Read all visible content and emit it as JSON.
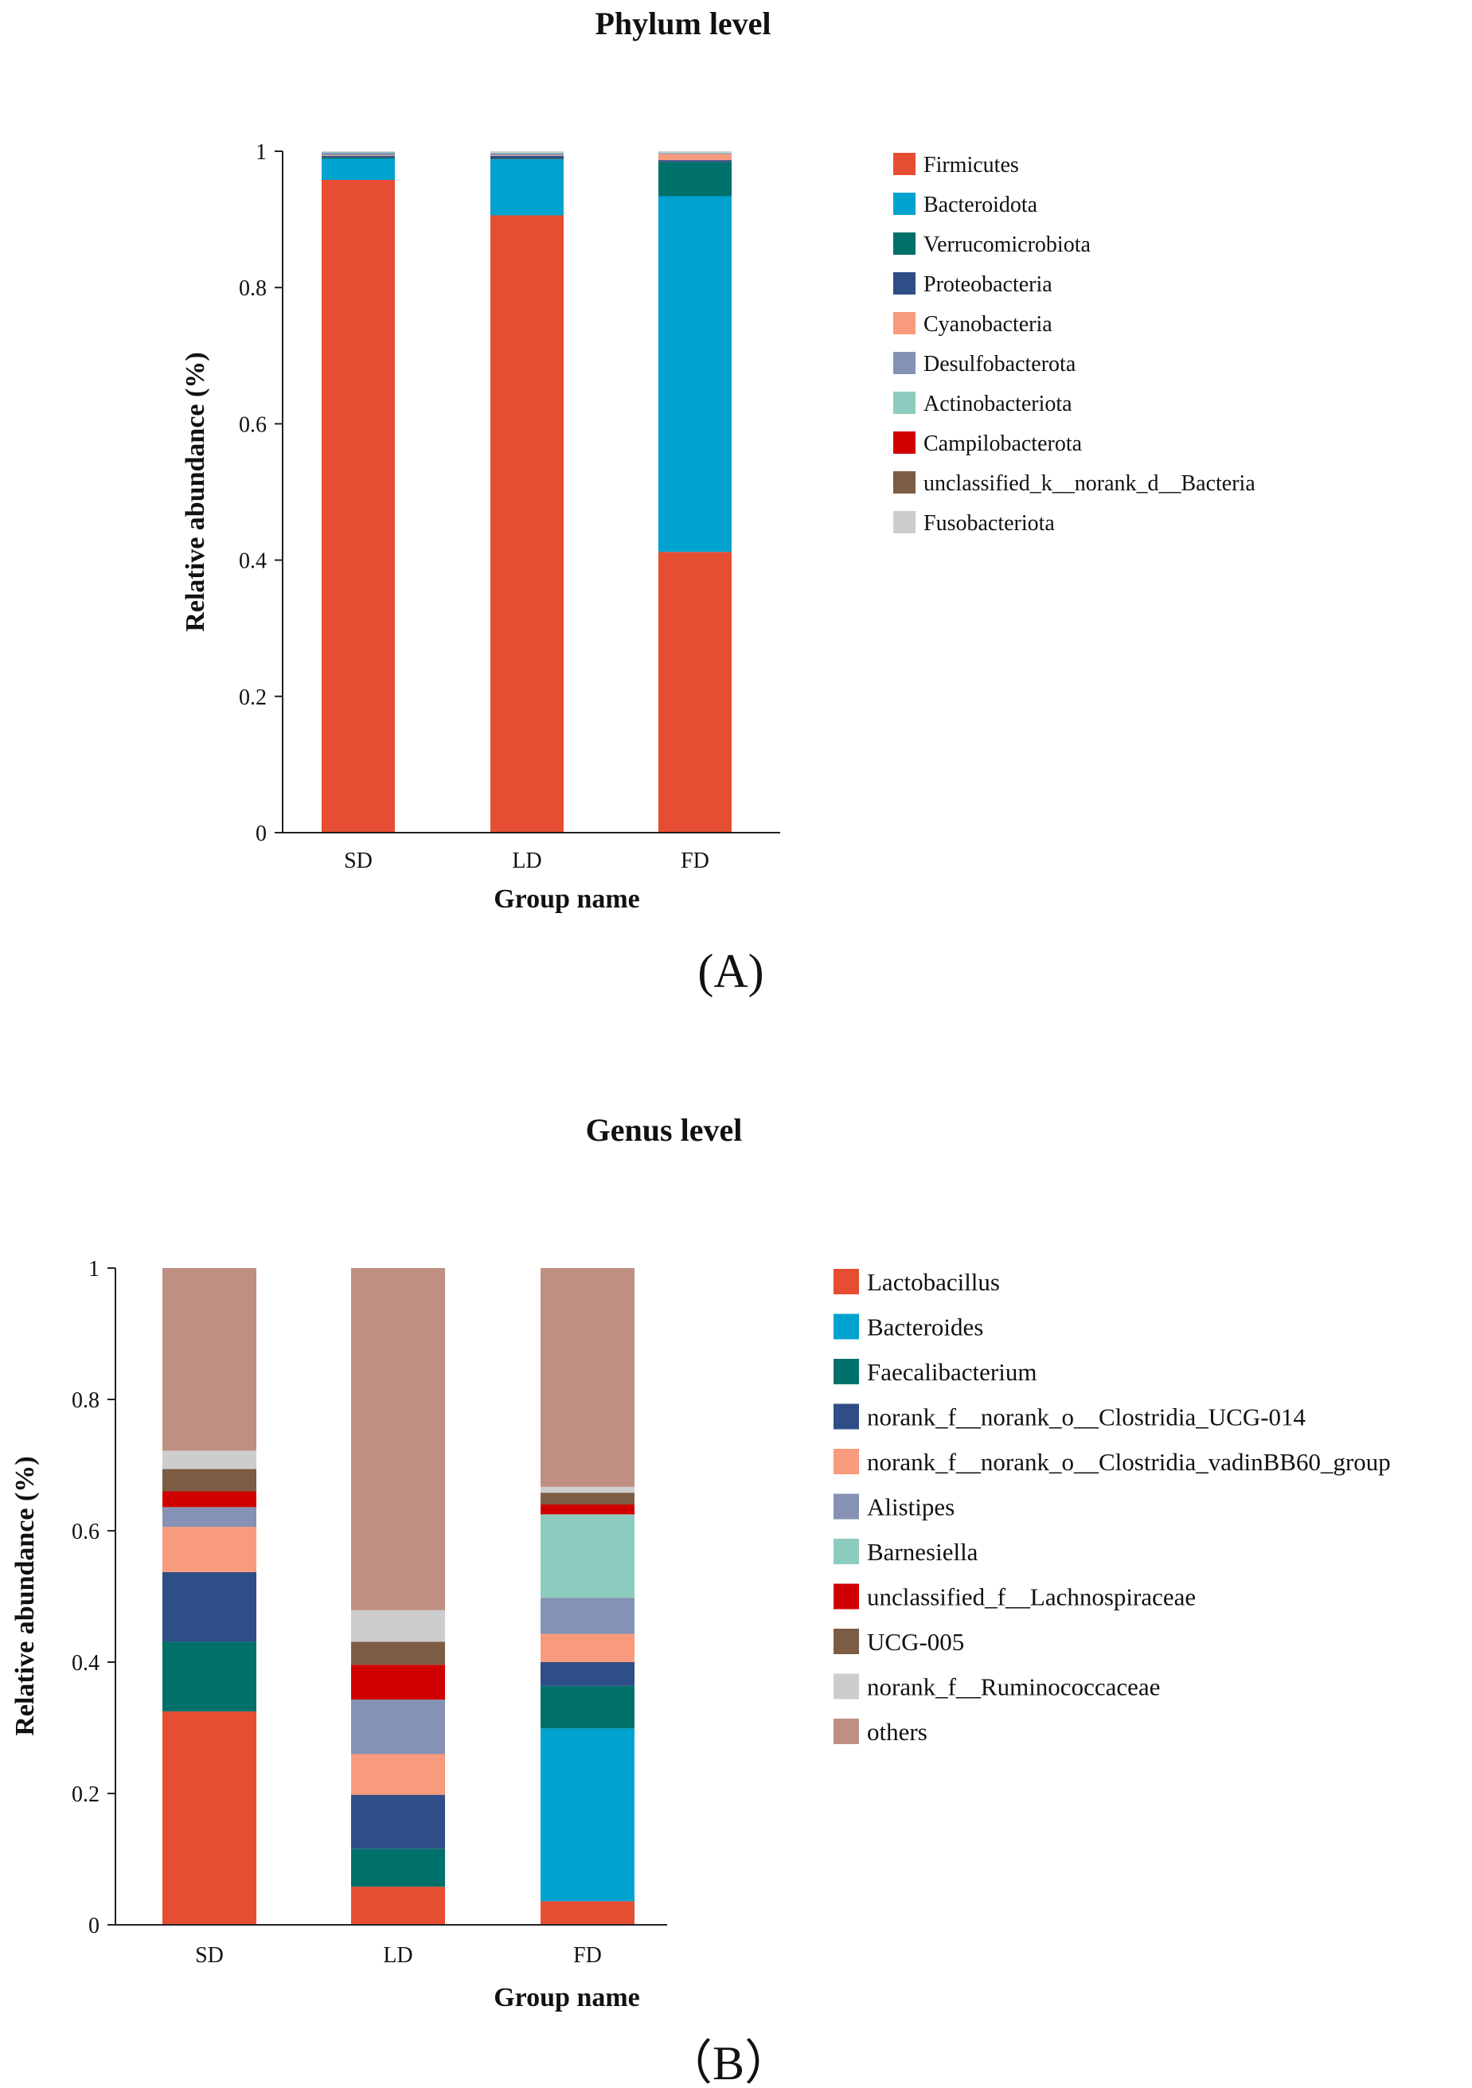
{
  "chart_data": [
    {
      "type": "bar",
      "stacked": true,
      "title": "Phylum level",
      "xlabel": "Group name",
      "ylabel": "Relative abundance (%)",
      "ylim": [
        0,
        1
      ],
      "yticks": [
        "0",
        "0.2",
        "0.4",
        "0.6",
        "0.8",
        "1"
      ],
      "categories": [
        "SD",
        "LD",
        "FD"
      ],
      "legend_position": "right",
      "panel_label": "(A)",
      "series": [
        {
          "name": "Firmicutes",
          "color": "#E64E33",
          "values": [
            0.958,
            0.906,
            0.412
          ]
        },
        {
          "name": "Bacteroidota",
          "color": "#00A3D0",
          "values": [
            0.031,
            0.082,
            0.522
          ]
        },
        {
          "name": "Verrucomicrobiota",
          "color": "#00706A",
          "values": [
            0.002,
            0.001,
            0.05
          ]
        },
        {
          "name": "Proteobacteria",
          "color": "#2F4D86",
          "values": [
            0.002,
            0.004,
            0.003
          ]
        },
        {
          "name": "Cyanobacteria",
          "color": "#F89B7D",
          "values": [
            0.001,
            0.001,
            0.009
          ]
        },
        {
          "name": "Desulfobacterota",
          "color": "#8592B5",
          "values": [
            0.004,
            0.003,
            0.001
          ]
        },
        {
          "name": "Actinobacteriota",
          "color": "#8CCCBE",
          "values": [
            0.001,
            0.001,
            0.001
          ]
        },
        {
          "name": "Campilobacterota",
          "color": "#D10000",
          "values": [
            0.0,
            0.0,
            0.0
          ]
        },
        {
          "name": "unclassified_k__norank_d__Bacteria",
          "color": "#7D5C45",
          "values": [
            0.0,
            0.0,
            0.0
          ]
        },
        {
          "name": "Fusobacteriota",
          "color": "#CDCDCD",
          "values": [
            0.001,
            0.002,
            0.002
          ]
        }
      ]
    },
    {
      "type": "bar",
      "stacked": true,
      "title": "Genus level",
      "xlabel": "Group name",
      "ylabel": "Relative abundance (%)",
      "ylim": [
        0,
        1
      ],
      "yticks": [
        "0",
        "0.2",
        "0.4",
        "0.6",
        "0.8",
        "1"
      ],
      "categories": [
        "SD",
        "LD",
        "FD"
      ],
      "legend_position": "right",
      "panel_label": "（B）",
      "series": [
        {
          "name": "Lactobacillus",
          "color": "#E64E33",
          "values": [
            0.325,
            0.058,
            0.036
          ]
        },
        {
          "name": "Bacteroides",
          "color": "#00A3D0",
          "values": [
            0.0,
            0.0,
            0.263
          ]
        },
        {
          "name": "Faecalibacterium",
          "color": "#00706A",
          "values": [
            0.106,
            0.058,
            0.065
          ]
        },
        {
          "name": "norank_f__norank_o__Clostridia_UCG-014",
          "color": "#2F4D86",
          "values": [
            0.106,
            0.082,
            0.036
          ]
        },
        {
          "name": "norank_f__norank_o__Clostridia_vadinBB60_group",
          "color": "#F89B7D",
          "values": [
            0.069,
            0.062,
            0.043
          ]
        },
        {
          "name": "Alistipes",
          "color": "#8592B5",
          "values": [
            0.03,
            0.083,
            0.055
          ]
        },
        {
          "name": "Barnesiella",
          "color": "#8CCCBE",
          "values": [
            0.0,
            0.0,
            0.127
          ]
        },
        {
          "name": "unclassified_f__Lachnospiraceae",
          "color": "#D10000",
          "values": [
            0.024,
            0.053,
            0.015
          ]
        },
        {
          "name": "UCG-005",
          "color": "#7D5C45",
          "values": [
            0.034,
            0.035,
            0.018
          ]
        },
        {
          "name": "norank_f__Ruminococcaceae",
          "color": "#CDCDCD",
          "values": [
            0.028,
            0.048,
            0.009
          ]
        },
        {
          "name": "others",
          "color": "#BF8F82",
          "values": [
            0.278,
            0.521,
            0.333
          ]
        }
      ]
    }
  ]
}
